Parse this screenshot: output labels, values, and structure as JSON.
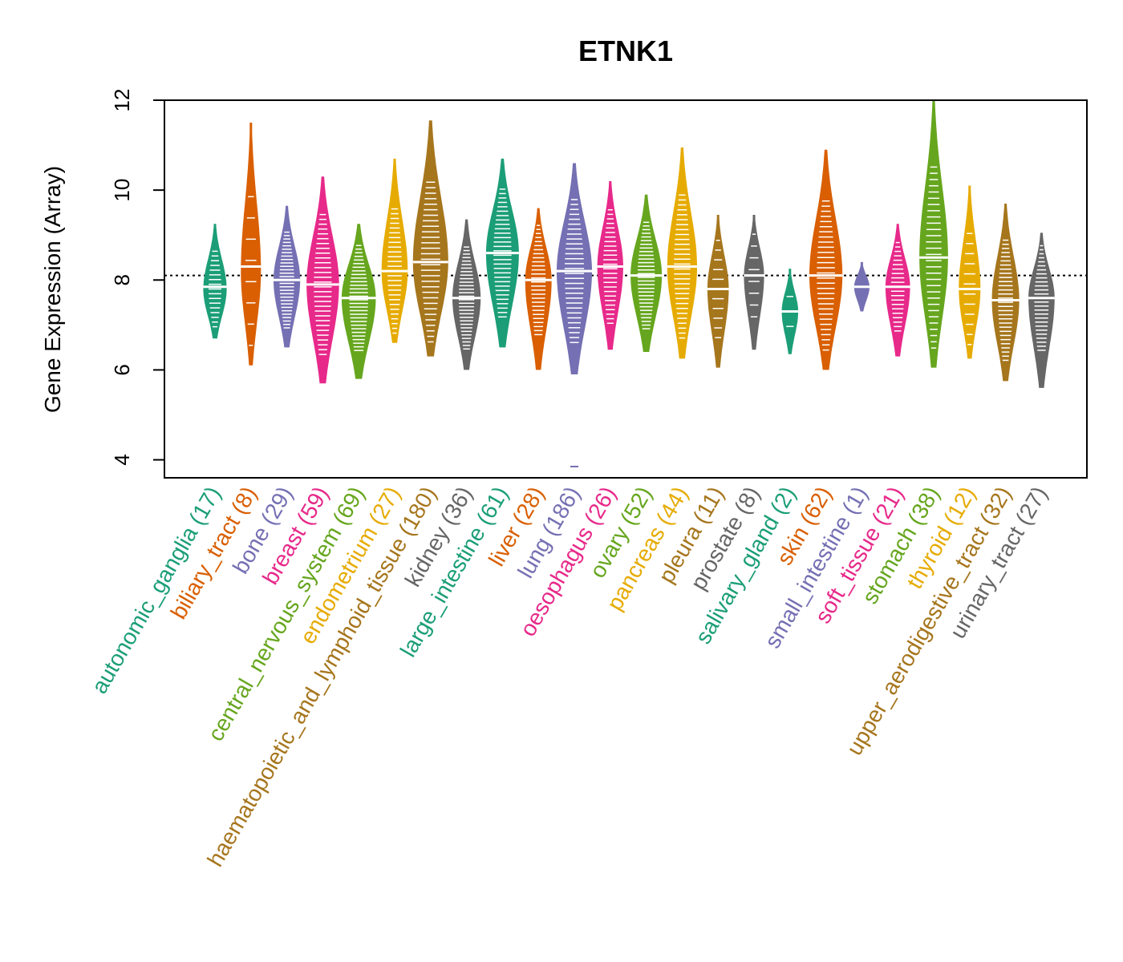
{
  "chart_data": {
    "type": "violin",
    "title": "ETNK1",
    "ylabel": "Gene Expression (Array)",
    "xlabel": "",
    "ylim": [
      3.6,
      12.0
    ],
    "yticks": [
      4,
      6,
      8,
      10,
      12
    ],
    "reference_line": 8.1,
    "categories": [
      {
        "name": "autonomic_ganglia",
        "n": 17,
        "label": "autonomic_ganglia (17)",
        "color": "#1b9e77",
        "min": 6.7,
        "max": 9.25,
        "median": 7.85,
        "mode": 7.8
      },
      {
        "name": "biliary_tract",
        "n": 8,
        "label": "biliary_tract (8)",
        "color": "#d95f02",
        "min": 6.1,
        "max": 11.5,
        "median": 8.3,
        "mode": 8.2
      },
      {
        "name": "bone",
        "n": 29,
        "label": "bone (29)",
        "color": "#7570b3",
        "min": 6.5,
        "max": 9.65,
        "median": 8.0,
        "mode": 8.0
      },
      {
        "name": "breast",
        "n": 59,
        "label": "breast (59)",
        "color": "#e7298a",
        "min": 5.7,
        "max": 10.3,
        "median": 7.9,
        "mode": 7.9
      },
      {
        "name": "central_nervous_system",
        "n": 69,
        "label": "central_nervous_system (69)",
        "color": "#66a61e",
        "min": 5.8,
        "max": 9.25,
        "median": 7.6,
        "mode": 7.6
      },
      {
        "name": "endometrium",
        "n": 27,
        "label": "endometrium (27)",
        "color": "#e6ab02",
        "min": 6.6,
        "max": 10.7,
        "median": 8.2,
        "mode": 8.2
      },
      {
        "name": "haematopoietic_and_lymphoid_tissue",
        "n": 180,
        "label": "haematopoietic_and_lymphoid_tissue (180)",
        "color": "#a6761d",
        "min": 6.3,
        "max": 11.55,
        "median": 8.4,
        "mode": 8.4
      },
      {
        "name": "kidney",
        "n": 36,
        "label": "kidney (36)",
        "color": "#666666",
        "min": 6.0,
        "max": 9.35,
        "median": 7.6,
        "mode": 7.6
      },
      {
        "name": "large_intestine",
        "n": 61,
        "label": "large_intestine (61)",
        "color": "#1b9e77",
        "min": 6.5,
        "max": 10.7,
        "median": 8.6,
        "mode": 8.6
      },
      {
        "name": "liver",
        "n": 28,
        "label": "liver (28)",
        "color": "#d95f02",
        "min": 6.0,
        "max": 9.6,
        "median": 8.0,
        "mode": 8.0
      },
      {
        "name": "lung",
        "n": 186,
        "label": "lung (186)",
        "color": "#7570b3",
        "min": 5.9,
        "max": 10.6,
        "median": 8.2,
        "mode": 8.2
      },
      {
        "name": "oesophagus",
        "n": 26,
        "label": "oesophagus (26)",
        "color": "#e7298a",
        "min": 6.45,
        "max": 10.2,
        "median": 8.3,
        "mode": 8.3
      },
      {
        "name": "ovary",
        "n": 52,
        "label": "ovary (52)",
        "color": "#66a61e",
        "min": 6.4,
        "max": 9.9,
        "median": 8.1,
        "mode": 8.1
      },
      {
        "name": "pancreas",
        "n": 44,
        "label": "pancreas (44)",
        "color": "#e6ab02",
        "min": 6.25,
        "max": 10.95,
        "median": 8.3,
        "mode": 8.3
      },
      {
        "name": "pleura",
        "n": 11,
        "label": "pleura (11)",
        "color": "#a6761d",
        "min": 6.05,
        "max": 9.45,
        "median": 7.8,
        "mode": 7.8
      },
      {
        "name": "prostate",
        "n": 8,
        "label": "prostate (8)",
        "color": "#666666",
        "min": 6.45,
        "max": 9.45,
        "median": 8.1,
        "mode": 8.1
      },
      {
        "name": "salivary_gland",
        "n": 2,
        "label": "salivary_gland (2)",
        "color": "#1b9e77",
        "min": 6.35,
        "max": 8.25,
        "median": 7.3,
        "mode": 7.3
      },
      {
        "name": "skin",
        "n": 62,
        "label": "skin (62)",
        "color": "#d95f02",
        "min": 6.0,
        "max": 10.9,
        "median": 8.1,
        "mode": 8.1
      },
      {
        "name": "small_intestine",
        "n": 1,
        "label": "small_intestine (1)",
        "color": "#7570b3",
        "min": 7.3,
        "max": 8.4,
        "median": 7.85,
        "mode": 7.85
      },
      {
        "name": "soft_tissue",
        "n": 21,
        "label": "soft_tissue (21)",
        "color": "#e7298a",
        "min": 6.3,
        "max": 9.25,
        "median": 7.85,
        "mode": 7.85
      },
      {
        "name": "stomach",
        "n": 38,
        "label": "stomach (38)",
        "color": "#66a61e",
        "min": 6.05,
        "max": 12.0,
        "median": 8.5,
        "mode": 8.5
      },
      {
        "name": "thyroid",
        "n": 12,
        "label": "thyroid (12)",
        "color": "#e6ab02",
        "min": 6.25,
        "max": 10.1,
        "median": 7.8,
        "mode": 7.8
      },
      {
        "name": "upper_aerodigestive_tract",
        "n": 32,
        "label": "upper_aerodigestive_tract (32)",
        "color": "#a6761d",
        "min": 5.75,
        "max": 9.7,
        "median": 7.55,
        "mode": 7.55
      },
      {
        "name": "urinary_tract",
        "n": 27,
        "label": "urinary_tract (27)",
        "color": "#666666",
        "min": 5.6,
        "max": 9.05,
        "median": 7.6,
        "mode": 7.6
      }
    ],
    "outliers": [
      {
        "category": "lung",
        "y": 3.85
      }
    ]
  }
}
